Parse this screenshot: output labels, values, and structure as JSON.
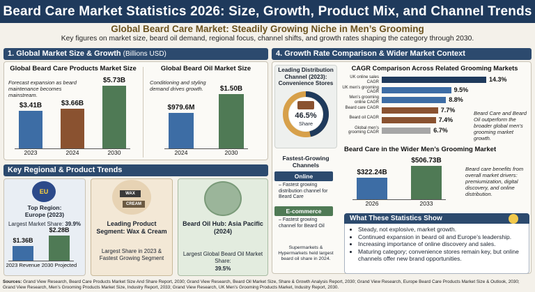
{
  "header": {
    "title": "Beard Care Market Statistics 2026: Size, Growth, Product Mix, and Channel Trends",
    "subtitle": "Global Beard Care Market: Steadily Growing Niche in Men’s Grooming",
    "description": "Key figures on market size, beard oil demand, regional focus, channel shifts, and growth rates shaping the category through 2030."
  },
  "section1": {
    "title": "1. Global Market Size & Growth",
    "unit": "(Billions USD)"
  },
  "section2": {
    "title": "Key Regional & Product Trends"
  },
  "section4": {
    "title": "4. Growth Rate Comparison & Wider Market Context"
  },
  "products_note": "Forecast expansion as beard maintenance becomes mainstream.",
  "oil_note": "Conditioning and styling demand drives growth.",
  "region": {
    "label": "Top Region:",
    "name": "Europe (2023)",
    "share_label": "Largest Market Share:",
    "share_value": "39.9%",
    "flag_letters": "EU"
  },
  "segment": {
    "title": "Leading Product Segment: Wax & Cream",
    "note": "Largest Share in 2023 & Fastest Growing Segment",
    "jar1": "WAX",
    "jar2": "CREAM"
  },
  "oil_hub": {
    "title": "Beard Oil Hub: Asia Pacific (2024)",
    "note": "Largest Global Beard Oil Market Share:",
    "value": "39.5%"
  },
  "distribution": {
    "title": "Leading Distribution Channel (2023): Convenience Stores",
    "value": "46.5%",
    "value_label": "Share"
  },
  "channels": {
    "title": "Fastest-Growing Channels",
    "online_label": "Online",
    "online_note": "– Fastest growing distribution channel for Beard Care",
    "ecom_label": "E-commerce",
    "ecom_note": "– Fastest growing channel for Beard Oil",
    "supermarket_note": "Supermarkets & Hypermarkets held largest beard oil share in 2024."
  },
  "cagr_note": "Beard Care and Beard Oil outperform the broader global men’s grooming market growth.",
  "wider_note": "Beard care benefits from overall market drivers: premiumization, digital discovery, and online distribution.",
  "what_show": {
    "title": "What These Statistics Show",
    "points": [
      "Steady, not explosive, market growth.",
      "Continued expansion in beard oil and Europe’s leadership.",
      "Increasing importance of online discovery and sales.",
      "Maturing category; convenience stores remain key, but online channels offer new brand opportunities."
    ]
  },
  "sources_label": "Sources:",
  "sources": "Grand View Research, Beard Care Products Market Size And Share Report, 2030; Grand View Research, Beard Oil Market Size, Share & Growth Analysis Report, 2030; Grand View Research, Europe Beard Care Products Market Size & Outlook, 2030; Grand View Research, Men’s Grooming Products Market Size, Industry Report, 2033; Grand View Research, UK Men’s Grooming Products Market, Industry Report, 2030.",
  "colors": {
    "navy": "#1f3a5c",
    "blue": "#3d6da5",
    "brown": "#8a5230",
    "green": "#4f7a55",
    "gray": "#a6a6a6"
  },
  "chart_data": [
    {
      "type": "bar",
      "title": "Global Beard Care Products Market Size",
      "categories": [
        "2023",
        "2024",
        "2030"
      ],
      "values": [
        3.41,
        3.66,
        5.73
      ],
      "labels": [
        "$3.41B",
        "$3.66B",
        "$5.73B"
      ]
    },
    {
      "type": "bar",
      "title": "Global Beard Oil Market Size",
      "categories": [
        "2024",
        "2030"
      ],
      "values": [
        0.9796,
        1.5
      ],
      "labels": [
        "$979.6M",
        "$1.50B"
      ]
    },
    {
      "type": "bar",
      "title": "",
      "categories": [
        "2023 Revenue",
        "2030 Projected"
      ],
      "values": [
        1.36,
        2.28
      ],
      "labels": [
        "$1.36B",
        "$2.28B"
      ]
    },
    {
      "type": "pie",
      "title": "Leading Distribution Channel (2023): Convenience Stores",
      "values": [
        46.5
      ],
      "labels": [
        "46.5%"
      ]
    },
    {
      "type": "bar",
      "orientation": "horizontal",
      "title": "CAGR Comparison Across Related Grooming Markets",
      "categories": [
        "UK online sales CAGR",
        "UK men’s grooming CAGR",
        "Men’s grooming online CAGR",
        "Beard care CAGR",
        "Beard oil CAGR",
        "Global men’s grooming CAGR"
      ],
      "values": [
        14.3,
        9.5,
        8.8,
        7.7,
        7.4,
        6.7
      ],
      "labels": [
        "14.3%",
        "9.5%",
        "8.8%",
        "7.7%",
        "7.4%",
        "6.7%"
      ]
    },
    {
      "type": "bar",
      "title": "Beard Care in the Wider Men’s Grooming Market",
      "categories": [
        "2026",
        "2033"
      ],
      "values": [
        322.24,
        506.73
      ],
      "labels": [
        "$322.24B",
        "$506.73B"
      ]
    }
  ]
}
